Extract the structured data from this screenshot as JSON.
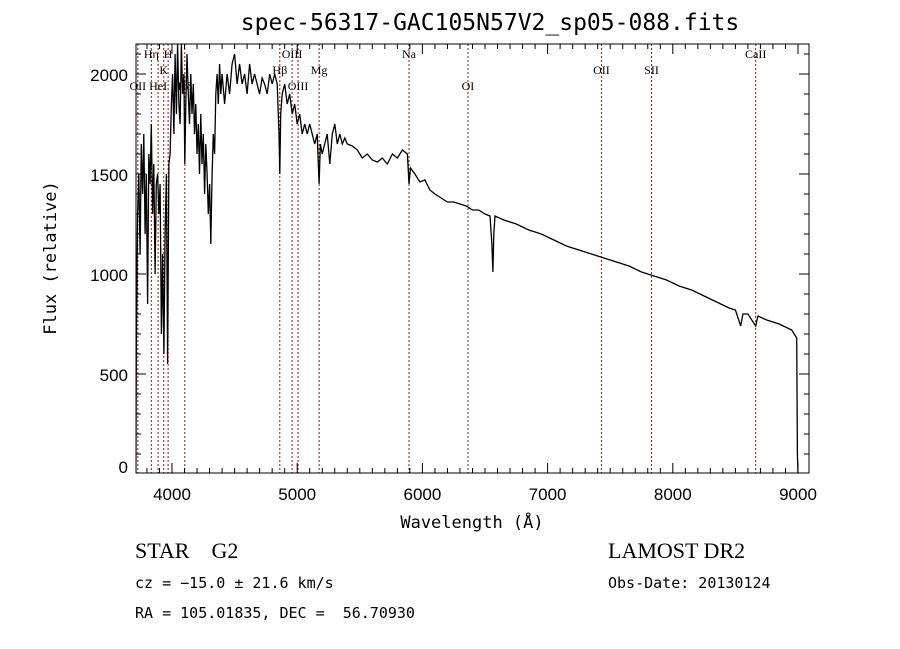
{
  "chart_data": {
    "type": "line",
    "title": "spec-56317-GAC105N57V2_sp05-088.fits",
    "xlabel": "Wavelength (Å)",
    "ylabel": "Flux (relative)",
    "xlim": [
      3712,
      9088
    ],
    "ylim": [
      0,
      2150
    ],
    "xticks": [
      4000,
      5000,
      6000,
      7000,
      8000,
      9000
    ],
    "yticks": [
      0,
      500,
      1000,
      1500,
      2000
    ],
    "grid": false,
    "series": [
      {
        "name": "flux",
        "x": [
          3712,
          3715,
          3725,
          3735,
          3745,
          3755,
          3765,
          3775,
          3785,
          3795,
          3805,
          3815,
          3825,
          3835,
          3845,
          3855,
          3865,
          3875,
          3885,
          3895,
          3905,
          3915,
          3925,
          3935,
          3945,
          3955,
          3965,
          3975,
          3985,
          3995,
          4005,
          4015,
          4025,
          4035,
          4045,
          4055,
          4065,
          4075,
          4085,
          4095,
          4102,
          4110,
          4120,
          4130,
          4140,
          4150,
          4160,
          4170,
          4180,
          4190,
          4200,
          4210,
          4220,
          4230,
          4240,
          4250,
          4260,
          4270,
          4280,
          4290,
          4300,
          4310,
          4320,
          4330,
          4340,
          4350,
          4360,
          4370,
          4380,
          4390,
          4400,
          4420,
          4440,
          4460,
          4480,
          4500,
          4520,
          4540,
          4560,
          4580,
          4600,
          4620,
          4640,
          4660,
          4680,
          4700,
          4720,
          4740,
          4760,
          4780,
          4800,
          4820,
          4840,
          4855,
          4861,
          4868,
          4880,
          4900,
          4920,
          4940,
          4960,
          4980,
          5000,
          5020,
          5040,
          5060,
          5080,
          5100,
          5120,
          5140,
          5160,
          5175,
          5185,
          5200,
          5220,
          5240,
          5260,
          5280,
          5300,
          5320,
          5340,
          5360,
          5380,
          5400,
          5440,
          5480,
          5520,
          5560,
          5600,
          5640,
          5680,
          5720,
          5760,
          5800,
          5840,
          5880,
          5893,
          5905,
          5940,
          5980,
          6020,
          6060,
          6100,
          6150,
          6200,
          6250,
          6300,
          6350,
          6400,
          6450,
          6500,
          6540,
          6555,
          6563,
          6570,
          6580,
          6650,
          6750,
          6850,
          6950,
          7050,
          7150,
          7250,
          7350,
          7450,
          7550,
          7650,
          7750,
          7850,
          7950,
          8050,
          8150,
          8250,
          8350,
          8450,
          8500,
          8542,
          8560,
          8600,
          8662,
          8680,
          8750,
          8850,
          8950,
          8990,
          8995,
          9000
        ],
        "y": [
          0,
          600,
          1300,
          1500,
          1100,
          1650,
          1400,
          1700,
          1200,
          1500,
          850,
          1600,
          1450,
          1750,
          1300,
          1550,
          1000,
          1450,
          1500,
          1300,
          1450,
          700,
          1100,
          600,
          1200,
          1500,
          550,
          1550,
          1600,
          1850,
          2000,
          1700,
          2100,
          1800,
          2150,
          1850,
          1750,
          2150,
          1900,
          2000,
          1550,
          1850,
          2100,
          1900,
          1750,
          2000,
          1800,
          1950,
          1700,
          1850,
          1600,
          1750,
          1500,
          1800,
          1550,
          1700,
          1400,
          1650,
          1500,
          1300,
          1450,
          1150,
          1500,
          1700,
          1600,
          1900,
          2000,
          1850,
          2050,
          1900,
          2000,
          1850,
          2000,
          1900,
          2050,
          2100,
          1950,
          2050,
          1950,
          2000,
          1900,
          2050,
          1950,
          2000,
          1950,
          1900,
          1980,
          1950,
          1900,
          2000,
          1950,
          2000,
          1950,
          1700,
          1500,
          1800,
          1900,
          1950,
          1850,
          1900,
          1800,
          1850,
          1750,
          1800,
          1700,
          1750,
          1700,
          1750,
          1700,
          1650,
          1700,
          1450,
          1650,
          1600,
          1650,
          1700,
          1550,
          1700,
          1750,
          1650,
          1700,
          1650,
          1680,
          1650,
          1640,
          1620,
          1580,
          1600,
          1570,
          1560,
          1580,
          1550,
          1600,
          1580,
          1620,
          1600,
          1450,
          1530,
          1500,
          1460,
          1470,
          1420,
          1400,
          1380,
          1360,
          1360,
          1350,
          1340,
          1320,
          1320,
          1300,
          1290,
          1150,
          1010,
          1200,
          1290,
          1270,
          1250,
          1220,
          1200,
          1170,
          1140,
          1120,
          1100,
          1080,
          1060,
          1040,
          1010,
          990,
          970,
          940,
          920,
          890,
          860,
          830,
          820,
          740,
          800,
          800,
          740,
          790,
          770,
          750,
          720,
          680,
          100,
          0
        ]
      }
    ],
    "line_markers": [
      {
        "label": "OII",
        "wavelength": 3727,
        "row": 3
      },
      {
        "label": "Hη",
        "wavelength": 3835,
        "row": 1
      },
      {
        "label": "HeI",
        "wavelength": 3889,
        "row": 3
      },
      {
        "label": "K",
        "wavelength": 3934,
        "row": 2
      },
      {
        "label": "H",
        "wavelength": 3969,
        "row": 1
      },
      {
        "label": "Hδ",
        "wavelength": 4102,
        "row": 3
      },
      {
        "label": "Hβ",
        "wavelength": 4861,
        "row": 2
      },
      {
        "label": "OIII",
        "wavelength": 4959,
        "row": 1
      },
      {
        "label": "OIII",
        "wavelength": 5007,
        "row": 3
      },
      {
        "label": "Mg",
        "wavelength": 5175,
        "row": 2
      },
      {
        "label": "Na",
        "wavelength": 5893,
        "row": 1
      },
      {
        "label": "OI",
        "wavelength": 6364,
        "row": 3
      },
      {
        "label": "OII",
        "wavelength": 7430,
        "row": 2
      },
      {
        "label": "SII",
        "wavelength": 7830,
        "row": 2
      },
      {
        "label": "CaII",
        "wavelength": 8662,
        "row": 1
      }
    ],
    "colors": {
      "line": "#000000",
      "marker": "#8b1a1a"
    }
  },
  "info": {
    "object_class": "STAR    G2",
    "survey": "LAMOST DR2",
    "redshift": "cz = −15.0 ± 21.6 km/s",
    "obs_date": "Obs-Date: 20130124",
    "coords": "RA = 105.01835, DEC =  56.70930"
  }
}
